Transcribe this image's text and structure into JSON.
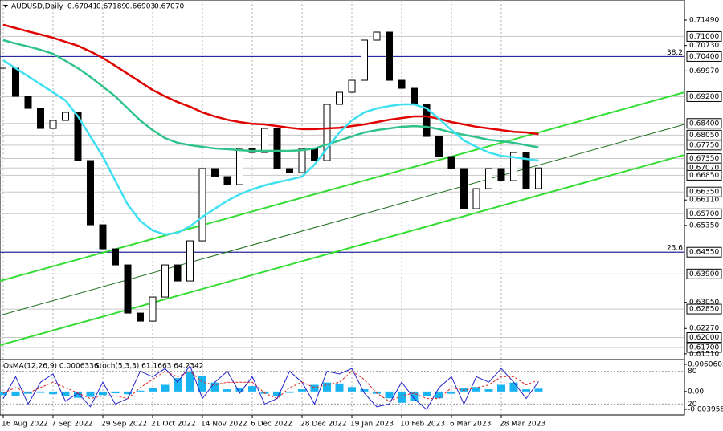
{
  "header": {
    "symbol": "AUDUSD,Daily",
    "ohlc": [
      "0.67041",
      "0.67189",
      "0.66903",
      "0.67070"
    ]
  },
  "chart_data": [
    {
      "type": "line",
      "categories": [
        "16 Aug 2022",
        null,
        null,
        null,
        "7 Sep 2022",
        null,
        null,
        null,
        "29 Sep 2022",
        null,
        null,
        null,
        "21 Oct 2022",
        null,
        null,
        null,
        "14 Nov 2022",
        null,
        null,
        null,
        "6 Dec 2022",
        null,
        null,
        null,
        "28 Dec 2022",
        null,
        null,
        null,
        "19 Jan 2023",
        null,
        null,
        null,
        "10 Feb 2023",
        null,
        null,
        null,
        "6 Mar 2023",
        null,
        null,
        null,
        "28 Mar 2023",
        null,
        null,
        null
      ],
      "series": [
        {
          "name": "AUDUSD",
          "color": "#000000",
          "style": "bars",
          "values": [
            0.7005,
            0.6921,
            0.6885,
            0.6825,
            0.6849,
            0.6873,
            0.6729,
            0.6537,
            0.6465,
            0.6417,
            0.6273,
            0.6249,
            0.6321,
            0.6417,
            0.6369,
            0.6489,
            0.6705,
            0.6681,
            0.6657,
            0.6765,
            0.6753,
            0.6825,
            0.6705,
            0.6693,
            0.6765,
            0.6729,
            0.6897,
            0.6933,
            0.6969,
            0.7089,
            0.7113,
            0.6969,
            0.6945,
            0.6897,
            0.6801,
            0.6741,
            0.6705,
            0.6585,
            0.6645,
            0.6705,
            0.6669,
            0.6753,
            0.6645,
            0.6707
          ]
        },
        {
          "color": "#e00000",
          "style": "line",
          "values": [
            0.7135,
            0.7125,
            0.7115,
            0.7106,
            0.7096,
            0.7084,
            0.7072,
            0.7055,
            0.7036,
            0.7012,
            0.6988,
            0.6964,
            0.694,
            0.6921,
            0.6904,
            0.689,
            0.6873,
            0.6861,
            0.6851,
            0.6844,
            0.6839,
            0.6837,
            0.6832,
            0.6827,
            0.6823,
            0.6823,
            0.6825,
            0.6827,
            0.6832,
            0.6837,
            0.6844,
            0.6851,
            0.6856,
            0.6861,
            0.6861,
            0.6854,
            0.6844,
            0.6837,
            0.683,
            0.6825,
            0.682,
            0.6815,
            0.6813,
            0.6808
          ]
        },
        {
          "color": "#2fc28a",
          "style": "line",
          "values": [
            0.7089,
            0.7079,
            0.707,
            0.706,
            0.7048,
            0.7027,
            0.7005,
            0.6979,
            0.695,
            0.6921,
            0.6885,
            0.6849,
            0.682,
            0.6796,
            0.6782,
            0.6775,
            0.677,
            0.6765,
            0.6763,
            0.676,
            0.6758,
            0.6758,
            0.6758,
            0.6758,
            0.676,
            0.6765,
            0.6777,
            0.6789,
            0.6801,
            0.6813,
            0.682,
            0.6825,
            0.683,
            0.6832,
            0.683,
            0.6823,
            0.6813,
            0.6806,
            0.6799,
            0.6791,
            0.6787,
            0.6782,
            0.6775,
            0.6768
          ]
        },
        {
          "color": "#3fe0f0",
          "style": "line",
          "values": [
            0.7029,
            0.7005,
            0.6981,
            0.6957,
            0.6933,
            0.6909,
            0.6861,
            0.6801,
            0.6741,
            0.6669,
            0.6597,
            0.6549,
            0.652,
            0.6508,
            0.6513,
            0.6532,
            0.6561,
            0.6585,
            0.6609,
            0.6628,
            0.6643,
            0.6655,
            0.6664,
            0.6672,
            0.6681,
            0.6717,
            0.6765,
            0.6813,
            0.6849,
            0.6873,
            0.6885,
            0.6892,
            0.6897,
            0.6897,
            0.6885,
            0.6854,
            0.682,
            0.6789,
            0.677,
            0.6753,
            0.6743,
            0.6739,
            0.6734,
            0.6729
          ]
        }
      ],
      "trend_lines": [
        {
          "color": "#33dd33",
          "width": 2,
          "y": [
            0.6369,
            0.6933
          ]
        },
        {
          "color": "#33dd33",
          "width": 2,
          "y": [
            0.6177,
            0.6746
          ]
        },
        {
          "color": "#1f6f1f",
          "width": 1,
          "y": [
            0.6266,
            0.6837
          ]
        }
      ],
      "horizontal_lines": [
        {
          "value": 0.704,
          "label": "38.2",
          "color": "#2b2ba0"
        },
        {
          "value": 0.6455,
          "label": "23.6",
          "color": "#2b2ba0"
        }
      ],
      "ylim": [
        0.6134,
        0.7209
      ],
      "yticks": [
        {
          "value": 0.7149,
          "label": "0.71490"
        },
        {
          "value": 0.7073,
          "label": "0.70730"
        },
        {
          "value": 0.6997,
          "label": "0.69970"
        },
        {
          "value": 0.6611,
          "label": "0.66110"
        },
        {
          "value": 0.6535,
          "label": "0.65350"
        },
        {
          "value": 0.6305,
          "label": "0.63050"
        },
        {
          "value": 0.6227,
          "label": "0.62270"
        },
        {
          "value": 0.6151,
          "label": "0.61510"
        }
      ],
      "level_ticks": [
        {
          "value": 0.71,
          "label": "0.71000"
        },
        {
          "value": 0.704,
          "label": "0.70400"
        },
        {
          "value": 0.692,
          "label": "0.69200"
        },
        {
          "value": 0.684,
          "label": "0.68400"
        },
        {
          "value": 0.6805,
          "label": "0.68050"
        },
        {
          "value": 0.6775,
          "label": "0.67750"
        },
        {
          "value": 0.6735,
          "label": "0.67350"
        },
        {
          "value": 0.6707,
          "label": "0.67070"
        },
        {
          "value": 0.6685,
          "label": "0.66850"
        },
        {
          "value": 0.6635,
          "label": "0.66350"
        },
        {
          "value": 0.657,
          "label": "0.65700"
        },
        {
          "value": 0.6455,
          "label": "0.64550"
        },
        {
          "value": 0.639,
          "label": "0.63900"
        },
        {
          "value": 0.6285,
          "label": "0.62850"
        },
        {
          "value": 0.62,
          "label": "0.62000"
        },
        {
          "value": 0.617,
          "label": "0.61700"
        }
      ],
      "grid": true
    },
    {
      "type": "bar",
      "title": "OsMA(12,26,9) 0.0006336",
      "subtitle": "Stoch(5,3,3) 61.1663 64.2342",
      "series": [
        {
          "name": "OsMA",
          "color": "#19b4f0",
          "values": [
            -0.0008,
            -0.001,
            -0.0005,
            -0.0003,
            -0.0006,
            -0.001,
            -0.0014,
            -0.0012,
            -0.0008,
            -0.0004,
            -0.0006,
            0.0002,
            0.0008,
            0.0015,
            0.003,
            0.0045,
            0.0035,
            0.002,
            0.0005,
            0.0008,
            0.0012,
            -0.0005,
            -0.001,
            -0.0003,
            0.0005,
            0.0015,
            0.002,
            0.0018,
            0.001,
            0.0005,
            -0.0005,
            -0.0015,
            -0.0025,
            -0.002,
            -0.001,
            -0.0015,
            -0.0005,
            0.0008,
            0.001,
            0.0005,
            0.0015,
            0.002,
            0.0005,
            0.0006336
          ]
        },
        {
          "name": "Stoch",
          "color": "#2222cc",
          "axis": "y2",
          "values": [
            30,
            70,
            20,
            60,
            75,
            25,
            40,
            15,
            60,
            20,
            30,
            80,
            70,
            85,
            60,
            90,
            30,
            60,
            80,
            40,
            70,
            20,
            30,
            80,
            60,
            20,
            80,
            75,
            85,
            40,
            15,
            20,
            60,
            30,
            10,
            50,
            70,
            20,
            70,
            60,
            85,
            60,
            30,
            61.1663
          ]
        },
        {
          "name": "Signal",
          "color": "#dd2222",
          "axis": "y2",
          "dashed": true,
          "values": [
            40,
            50,
            40,
            50,
            60,
            50,
            40,
            30,
            35,
            35,
            30,
            50,
            65,
            80,
            70,
            80,
            60,
            55,
            60,
            60,
            60,
            40,
            30,
            50,
            60,
            50,
            55,
            60,
            80,
            65,
            40,
            25,
            35,
            40,
            30,
            30,
            50,
            45,
            50,
            55,
            70,
            70,
            55,
            64.2342
          ]
        }
      ],
      "ylim": [
        -0.00521,
        0.00695
      ],
      "yticks": [
        0.0060605,
        {
          "value": 0,
          "label": "0.00"
        },
        -0.003956
      ],
      "y2lim": [
        0,
        100
      ],
      "y2ticks": [
        80,
        20
      ]
    }
  ]
}
